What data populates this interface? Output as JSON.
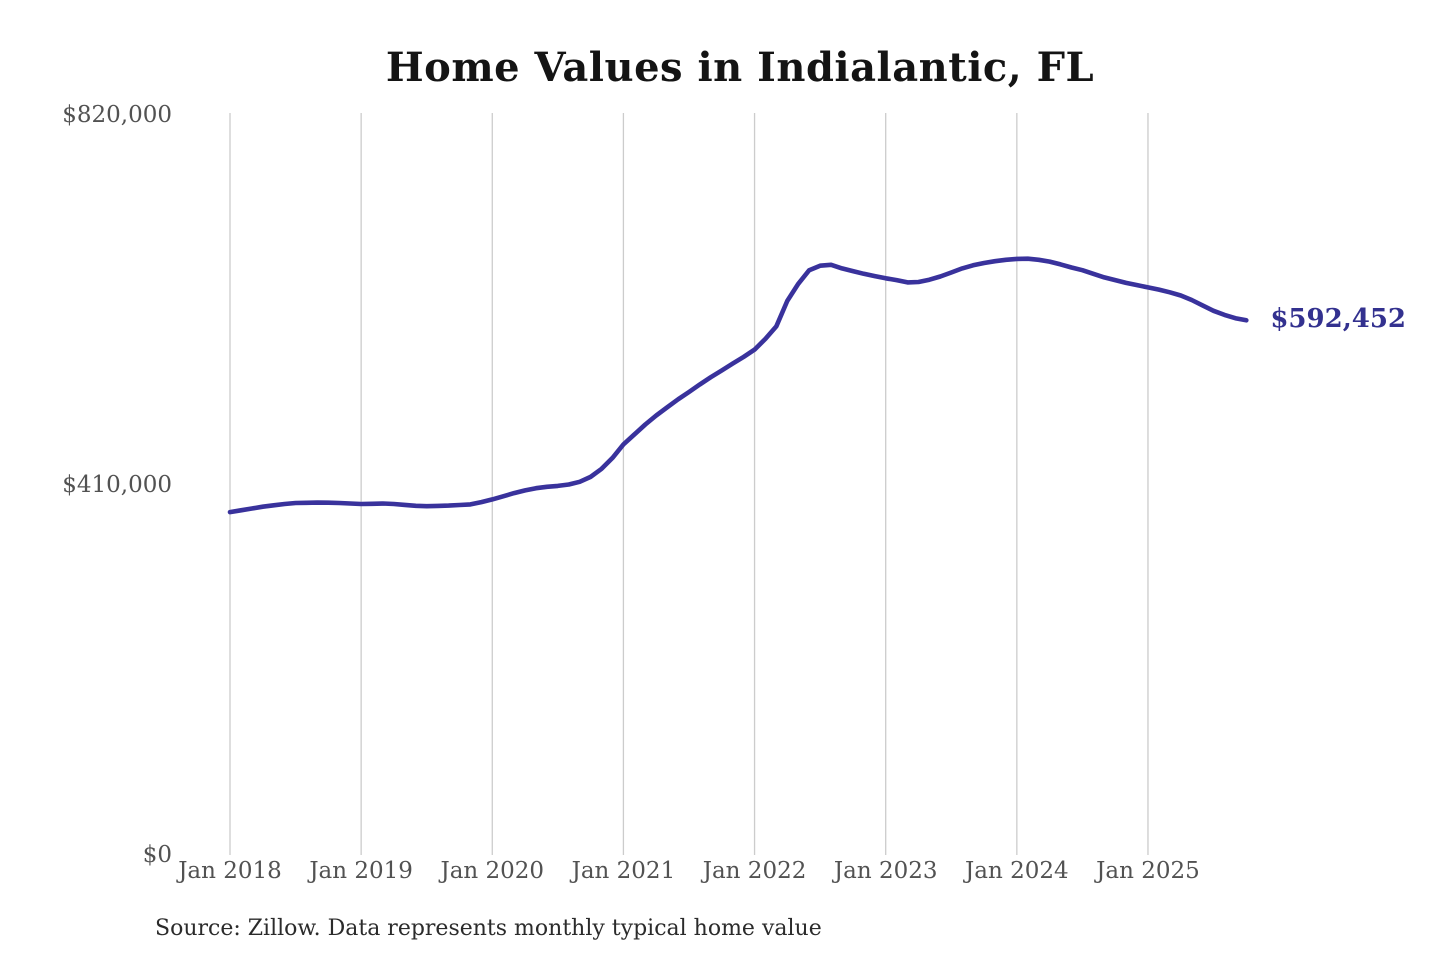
{
  "header": {
    "title": "Home Values in Indialantic, FL"
  },
  "footer": {
    "source_note": "Source: Zillow. Data represents monthly typical home value"
  },
  "chart_data": {
    "type": "line",
    "title": "Home Values in Indialantic, FL",
    "xlabel": "",
    "ylabel": "",
    "ylim": [
      0,
      820000
    ],
    "grid": "vertical-only",
    "legend": "none",
    "line_color": "#39329c",
    "end_label_color": "#33318f",
    "gridline_color": "#cccccc",
    "tick_label_color": "#525252",
    "end_label": "$592,452",
    "end_value": 592452,
    "y_ticks": [
      {
        "label": "$820,000",
        "value": 820000
      },
      {
        "label": "$410,000",
        "value": 410000
      },
      {
        "label": "$0",
        "value": 0
      }
    ],
    "x_tick_labels": [
      "Jan 2018",
      "Jan 2019",
      "Jan 2020",
      "Jan 2021",
      "Jan 2022",
      "Jan 2023",
      "Jan 2024",
      "Jan 2025"
    ],
    "months": [
      "2018-01",
      "2018-02",
      "2018-03",
      "2018-04",
      "2018-05",
      "2018-06",
      "2018-07",
      "2018-08",
      "2018-09",
      "2018-10",
      "2018-11",
      "2018-12",
      "2019-01",
      "2019-02",
      "2019-03",
      "2019-04",
      "2019-05",
      "2019-06",
      "2019-07",
      "2019-08",
      "2019-09",
      "2019-10",
      "2019-11",
      "2019-12",
      "2020-01",
      "2020-02",
      "2020-03",
      "2020-04",
      "2020-05",
      "2020-06",
      "2020-07",
      "2020-08",
      "2020-09",
      "2020-10",
      "2020-11",
      "2020-12",
      "2021-01",
      "2021-02",
      "2021-03",
      "2021-04",
      "2021-05",
      "2021-06",
      "2021-07",
      "2021-08",
      "2021-09",
      "2021-10",
      "2021-11",
      "2021-12",
      "2022-01",
      "2022-02",
      "2022-03",
      "2022-04",
      "2022-05",
      "2022-06",
      "2022-07",
      "2022-08",
      "2022-09",
      "2022-10",
      "2022-11",
      "2022-12",
      "2023-01",
      "2023-02",
      "2023-03",
      "2023-04",
      "2023-05",
      "2023-06",
      "2023-07",
      "2023-08",
      "2023-09",
      "2023-10",
      "2023-11",
      "2023-12",
      "2024-01",
      "2024-02",
      "2024-03",
      "2024-04",
      "2024-05",
      "2024-06",
      "2024-07",
      "2024-08",
      "2024-09",
      "2024-10",
      "2024-11",
      "2024-12",
      "2025-01",
      "2025-02",
      "2025-03",
      "2025-04",
      "2025-05",
      "2025-06",
      "2025-07",
      "2025-08",
      "2025-09",
      "2025-10"
    ],
    "values": [
      380000,
      382000,
      384000,
      386000,
      387500,
      389000,
      390000,
      390300,
      390500,
      390400,
      390000,
      389500,
      389000,
      389200,
      389500,
      389000,
      388000,
      387000,
      386500,
      386800,
      387200,
      387800,
      388500,
      391000,
      394000,
      397500,
      401000,
      404000,
      406500,
      408000,
      409000,
      410500,
      413500,
      419000,
      428000,
      440000,
      455000,
      466000,
      477000,
      487000,
      496000,
      505000,
      513000,
      521500,
      529500,
      537000,
      544500,
      552000,
      560000,
      572000,
      586000,
      614000,
      633000,
      648000,
      653000,
      654000,
      650000,
      647000,
      644000,
      641500,
      639000,
      637000,
      634500,
      635000,
      637500,
      641000,
      645500,
      650000,
      653500,
      656000,
      658000,
      659500,
      660500,
      660800,
      659500,
      657500,
      654500,
      651000,
      648000,
      644000,
      640000,
      637000,
      634000,
      631500,
      629000,
      626500,
      623500,
      620000,
      615000,
      609000,
      603000,
      598500,
      594800,
      592452
    ]
  }
}
